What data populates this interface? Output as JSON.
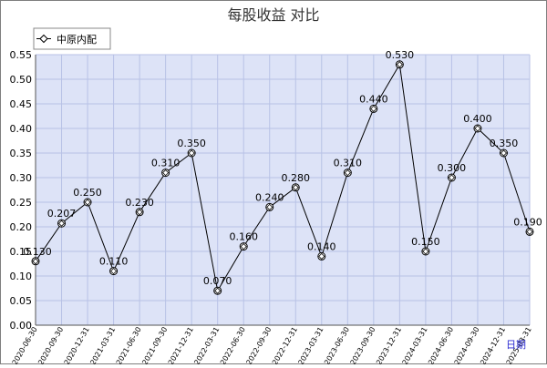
{
  "chart_data": {
    "type": "line",
    "title": "每股收益  对比",
    "legend": {
      "placement": "top-left",
      "entries": [
        "中原内配"
      ]
    },
    "xlabel": "日期",
    "ylabel": "",
    "x": [
      "2020-06-30",
      "2020-09-30",
      "2020-12-31",
      "2021-03-31",
      "2021-06-30",
      "2021-09-30",
      "2021-12-31",
      "2022-03-31",
      "2022-06-30",
      "2022-09-30",
      "2022-12-31",
      "2023-03-31",
      "2023-06-30",
      "2023-09-30",
      "2023-12-31",
      "2024-03-31",
      "2024-06-30",
      "2024-09-30",
      "2024-12-31",
      "2025-03-31"
    ],
    "series": [
      {
        "name": "中原内配",
        "values": [
          0.13,
          0.207,
          0.25,
          0.11,
          0.23,
          0.31,
          0.35,
          0.07,
          0.16,
          0.24,
          0.28,
          0.14,
          0.31,
          0.44,
          0.53,
          0.15,
          0.3,
          0.4,
          0.35,
          0.19
        ]
      }
    ],
    "point_labels": [
      "0.130",
      "0.207",
      "0.250",
      "0.110",
      "0.230",
      "0.310",
      "0.350",
      "0.070",
      "0.160",
      "0.240",
      "0.280",
      "0.140",
      "0.310",
      "0.440",
      "0.530",
      "0.150",
      "0.300",
      "0.400",
      "0.350",
      "0.190"
    ],
    "yticks": [
      "0.00",
      "0.05",
      "0.10",
      "0.15",
      "0.20",
      "0.25",
      "0.30",
      "0.35",
      "0.40",
      "0.45",
      "0.50",
      "0.55"
    ],
    "xtick_labels": [
      "2020-06-30",
      "2020-09-30",
      "2020-12-31",
      "2021-03-31",
      "2021-06-30",
      "2021-09-30",
      "2021-12-31",
      "2022-03-31",
      "2022-06-30",
      "2022-09-30",
      "2022-12-31",
      "2023-03-31",
      "2023-06-30",
      "2023-09-30",
      "2023-12-31",
      "2024-03-31",
      "2024-06-30",
      "2024-09-30",
      "2024-12-31",
      "2025-03-31"
    ],
    "ylim": [
      0,
      0.55
    ],
    "grid": true,
    "colors": {
      "plot_bg": "#dde3f7",
      "grid": "#b8c2e6",
      "line": "#000000",
      "marker_fill": "#ffffff",
      "axis_label": "#2b2bd1",
      "title": "#333333"
    }
  }
}
